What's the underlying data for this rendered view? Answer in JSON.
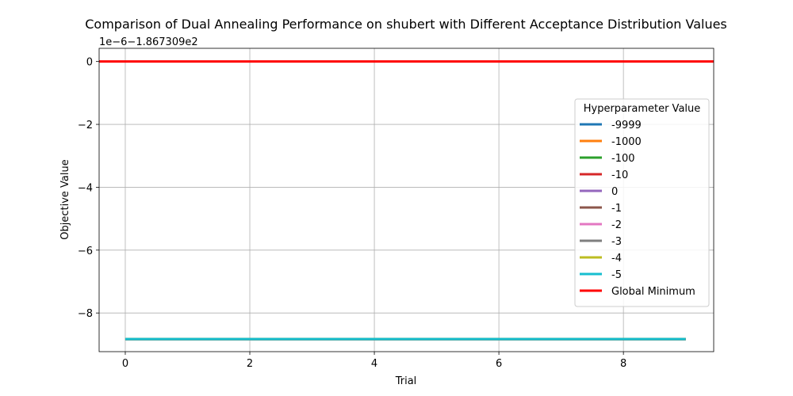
{
  "chart_data": {
    "type": "line",
    "title": "Comparison of Dual Annealing Performance on shubert with Different Acceptance Distribution Values",
    "xlabel": "Trial",
    "ylabel": "Objective Value",
    "y_offset_label": "1e−6−1.867309e2",
    "xlim": [
      -0.42,
      9.45
    ],
    "ylim": [
      -9.23,
      0.42
    ],
    "x_ticks": [
      0,
      2,
      4,
      6,
      8
    ],
    "x_tick_labels": [
      "0",
      "2",
      "4",
      "6",
      "8"
    ],
    "y_ticks": [
      0,
      -2,
      -4,
      -6,
      -8
    ],
    "y_tick_labels": [
      "0",
      "−2",
      "−4",
      "−6",
      "−8"
    ],
    "grid": true,
    "x": [
      0,
      1,
      2,
      3,
      4,
      5,
      6,
      7,
      8,
      9
    ],
    "legend": {
      "title": "Hyperparameter Value",
      "placement": "center-right"
    },
    "series": [
      {
        "name": "-9999",
        "color": "#1f77b4",
        "values": [
          -8.83,
          -8.83,
          -8.83,
          -8.83,
          -8.83,
          -8.83,
          -8.83,
          -8.83,
          -8.83,
          -8.83
        ]
      },
      {
        "name": "-1000",
        "color": "#ff7f0e",
        "values": [
          -8.83,
          -8.83,
          -8.83,
          -8.83,
          -8.83,
          -8.83,
          -8.83,
          -8.83,
          -8.83,
          -8.83
        ]
      },
      {
        "name": "-100",
        "color": "#2ca02c",
        "values": [
          -8.83,
          -8.83,
          -8.83,
          -8.83,
          -8.83,
          -8.83,
          -8.83,
          -8.83,
          -8.83,
          -8.83
        ]
      },
      {
        "name": "-10",
        "color": "#d62728",
        "values": [
          -8.83,
          -8.83,
          -8.83,
          -8.83,
          -8.83,
          -8.83,
          -8.83,
          -8.83,
          -8.83,
          -8.83
        ]
      },
      {
        "name": "0",
        "color": "#9467bd",
        "values": [
          -8.83,
          -8.83,
          -8.83,
          -8.83,
          -8.83,
          -8.83,
          -8.83,
          -8.83,
          -8.83,
          -8.83
        ]
      },
      {
        "name": "-1",
        "color": "#8c564b",
        "values": [
          -8.83,
          -8.83,
          -8.83,
          -8.83,
          -8.83,
          -8.83,
          -8.83,
          -8.83,
          -8.83,
          -8.83
        ]
      },
      {
        "name": "-2",
        "color": "#e377c2",
        "values": [
          -8.83,
          -8.83,
          -8.83,
          -8.83,
          -8.83,
          -8.83,
          -8.83,
          -8.83,
          -8.83,
          -8.83
        ]
      },
      {
        "name": "-3",
        "color": "#7f7f7f",
        "values": [
          -8.83,
          -8.83,
          -8.83,
          -8.83,
          -8.83,
          -8.83,
          -8.83,
          -8.83,
          -8.83,
          -8.83
        ]
      },
      {
        "name": "-4",
        "color": "#bcbd22",
        "values": [
          -8.83,
          -8.83,
          -8.83,
          -8.83,
          -8.83,
          -8.83,
          -8.83,
          -8.83,
          -8.83,
          -8.83
        ]
      },
      {
        "name": "-5",
        "color": "#17becf",
        "values": [
          -8.83,
          -8.83,
          -8.83,
          -8.83,
          -8.83,
          -8.83,
          -8.83,
          -8.83,
          -8.83,
          -8.83
        ]
      }
    ],
    "global_minimum": {
      "name": "Global Minimum",
      "value": 0,
      "color": "#ff0000"
    }
  }
}
